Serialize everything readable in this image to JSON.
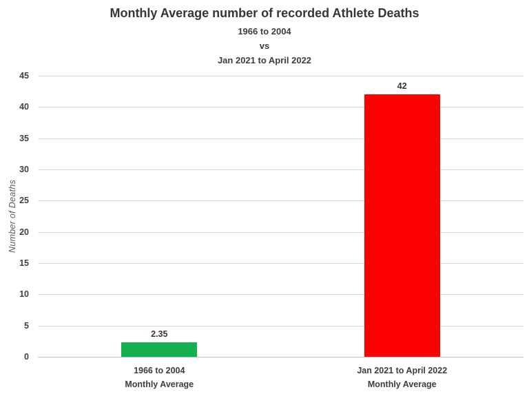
{
  "chart_data": {
    "type": "bar",
    "title": "Monthly Average number of recorded Athlete Deaths",
    "subtitle_lines": [
      "1966 to 2004",
      "vs",
      "Jan 2021 to April 2022"
    ],
    "categories": [
      "1966 to 2004\nMonthly Average",
      "Jan 2021 to April 2022\nMonthly Average"
    ],
    "values": [
      2.35,
      42
    ],
    "value_labels": [
      "2.35",
      "42"
    ],
    "bar_colors": [
      "#12b050",
      "#ff0000"
    ],
    "ylabel": "Number of Deaths",
    "xlabel": "",
    "ylim": [
      0,
      45
    ],
    "yticks": [
      0,
      5,
      10,
      15,
      20,
      25,
      30,
      35,
      40,
      45
    ],
    "grid": true,
    "gridline_color": "#d9d9d9",
    "legend": "none",
    "background_color": "#ffffff"
  }
}
